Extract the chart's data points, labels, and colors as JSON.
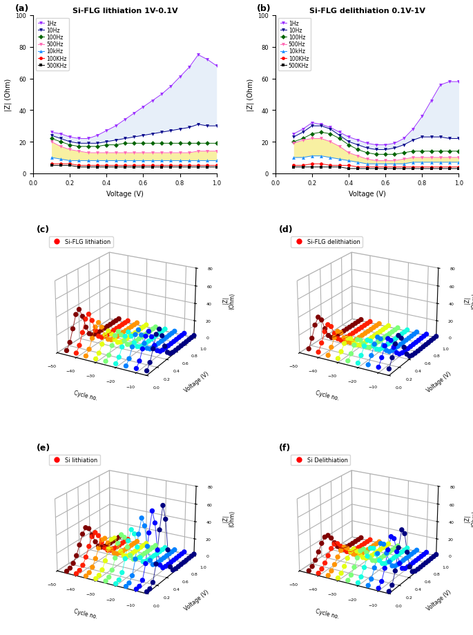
{
  "panel_a_title": "Si-FLG lithiation 1V-0.1V",
  "panel_b_title": "Si-FLG delithiation 0.1V-1V",
  "panel_c_title": "Si-FLG lithiation",
  "panel_d_title": "Si-FLG delithiation",
  "panel_e_title": "Si lithiation",
  "panel_f_title": "Si Delithiation",
  "xlabel_2d": "Voltage (V)",
  "ylabel_2d": "|Z| (Ohm)",
  "freq_labels": [
    "1Hz",
    "10Hz",
    "100Hz",
    "500Hz",
    "10kHz",
    "100KHz",
    "500KHz"
  ],
  "freq_colors": [
    "#9b30ff",
    "#00008b",
    "#006400",
    "#ff69b4",
    "#1e90ff",
    "#ff0000",
    "#000000"
  ],
  "freq_markers": [
    "v",
    "v",
    "D",
    "v",
    "^",
    "o",
    "s"
  ],
  "voltages_a": [
    0.1,
    0.15,
    0.2,
    0.25,
    0.3,
    0.35,
    0.4,
    0.45,
    0.5,
    0.55,
    0.6,
    0.65,
    0.7,
    0.75,
    0.8,
    0.85,
    0.9,
    0.95,
    1.0
  ],
  "data_a_1hz": [
    26,
    25,
    23,
    22,
    22,
    24,
    27,
    30,
    34,
    38,
    42,
    46,
    50,
    55,
    61,
    67,
    75,
    72,
    68
  ],
  "data_a_10hz": [
    24,
    22,
    20,
    19,
    19,
    19,
    20,
    21,
    22,
    23,
    24,
    25,
    26,
    27,
    28,
    29,
    31,
    30,
    30
  ],
  "data_a_100hz": [
    22,
    20,
    18,
    17,
    17,
    17,
    18,
    18,
    19,
    19,
    19,
    19,
    19,
    19,
    19,
    19,
    19,
    19,
    19
  ],
  "data_a_500hz": [
    20,
    17,
    15,
    14,
    13,
    13,
    13,
    13,
    13,
    13,
    13,
    13,
    13,
    13,
    13,
    13,
    14,
    14,
    14
  ],
  "data_a_10khz": [
    10,
    9,
    8,
    8,
    8,
    8,
    8,
    8,
    8,
    8,
    8,
    8,
    8,
    8,
    8,
    8,
    8,
    8,
    8
  ],
  "data_a_100khz": [
    6,
    6,
    6,
    5,
    5,
    5,
    5,
    5,
    5,
    5,
    5,
    5,
    5,
    5,
    5,
    5,
    5,
    5,
    5
  ],
  "data_a_500khz": [
    5,
    5,
    5,
    4,
    4,
    4,
    4,
    4,
    4,
    4,
    4,
    4,
    4,
    4,
    4,
    4,
    4,
    4,
    4
  ],
  "voltages_b": [
    0.1,
    0.15,
    0.2,
    0.25,
    0.3,
    0.35,
    0.4,
    0.45,
    0.5,
    0.55,
    0.6,
    0.65,
    0.7,
    0.75,
    0.8,
    0.85,
    0.9,
    0.95,
    1.0
  ],
  "data_b_1hz": [
    25,
    28,
    32,
    31,
    29,
    26,
    23,
    21,
    19,
    18,
    18,
    19,
    22,
    28,
    36,
    46,
    56,
    58,
    58
  ],
  "data_b_10hz": [
    23,
    26,
    30,
    30,
    28,
    24,
    20,
    18,
    16,
    15,
    15,
    16,
    18,
    21,
    23,
    23,
    23,
    22,
    22
  ],
  "data_b_100hz": [
    20,
    22,
    25,
    26,
    25,
    22,
    18,
    15,
    13,
    12,
    12,
    12,
    13,
    14,
    14,
    14,
    14,
    14,
    14
  ],
  "data_b_500hz": [
    19,
    21,
    22,
    22,
    20,
    17,
    13,
    11,
    9,
    8,
    8,
    8,
    9,
    10,
    10,
    10,
    10,
    10,
    10
  ],
  "data_b_10khz": [
    10,
    10,
    11,
    11,
    10,
    9,
    8,
    7,
    6,
    6,
    6,
    6,
    6,
    7,
    7,
    7,
    7,
    7,
    7
  ],
  "data_b_100khz": [
    5,
    5,
    6,
    6,
    5,
    5,
    5,
    4,
    4,
    4,
    4,
    4,
    4,
    4,
    4,
    4,
    4,
    4,
    4
  ],
  "data_b_500khz": [
    4,
    4,
    4,
    4,
    4,
    4,
    3,
    3,
    3,
    3,
    3,
    3,
    3,
    3,
    3,
    3,
    3,
    3,
    3
  ],
  "shade_blue": "#c5d8f0",
  "shade_yellow": "#f5e970"
}
